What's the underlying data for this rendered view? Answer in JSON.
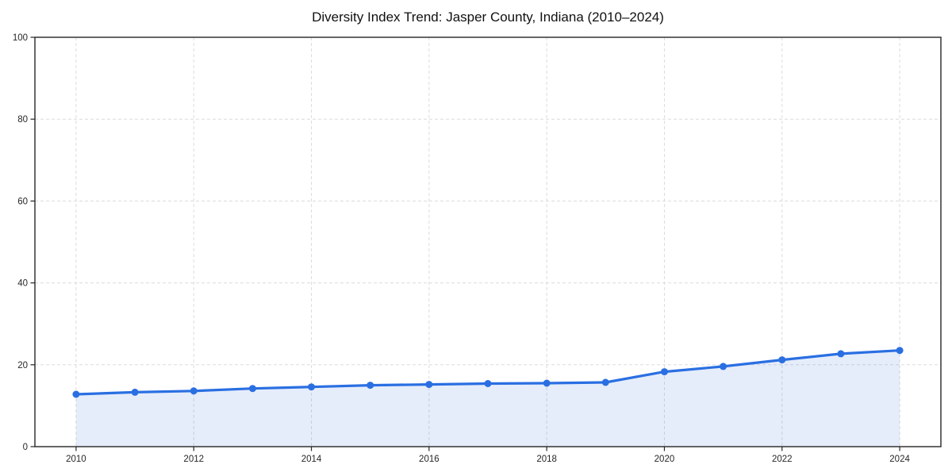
{
  "chart_data": {
    "type": "line",
    "title": "Diversity Index Trend: Jasper County, Indiana (2010–2024)",
    "xlabel": "",
    "ylabel": "",
    "x": [
      2010,
      2011,
      2012,
      2013,
      2014,
      2015,
      2016,
      2017,
      2018,
      2019,
      2020,
      2021,
      2022,
      2023,
      2024
    ],
    "series": [
      {
        "name": "Diversity Index",
        "values": [
          12.8,
          13.3,
          13.6,
          14.2,
          14.6,
          15.0,
          15.2,
          15.4,
          15.5,
          15.7,
          18.3,
          19.6,
          21.2,
          22.7,
          23.5
        ]
      }
    ],
    "xticks": [
      2010,
      2012,
      2014,
      2016,
      2018,
      2020,
      2022,
      2024
    ],
    "yticks": [
      0,
      20,
      40,
      60,
      80,
      100
    ],
    "xlim": [
      2009.3,
      2024.7
    ],
    "ylim": [
      0,
      100
    ],
    "grid": true,
    "grid_style": "dashed",
    "area_fill": true,
    "markers": true,
    "legend": false,
    "colors": {
      "line": "#2a6fe2",
      "marker": "#2a6fe2",
      "fill": "rgba(42, 111, 226, 0.12)",
      "grid": "#dcdcdc",
      "spine": "#262626",
      "tick_label": "#262626",
      "title": "#111111"
    }
  }
}
